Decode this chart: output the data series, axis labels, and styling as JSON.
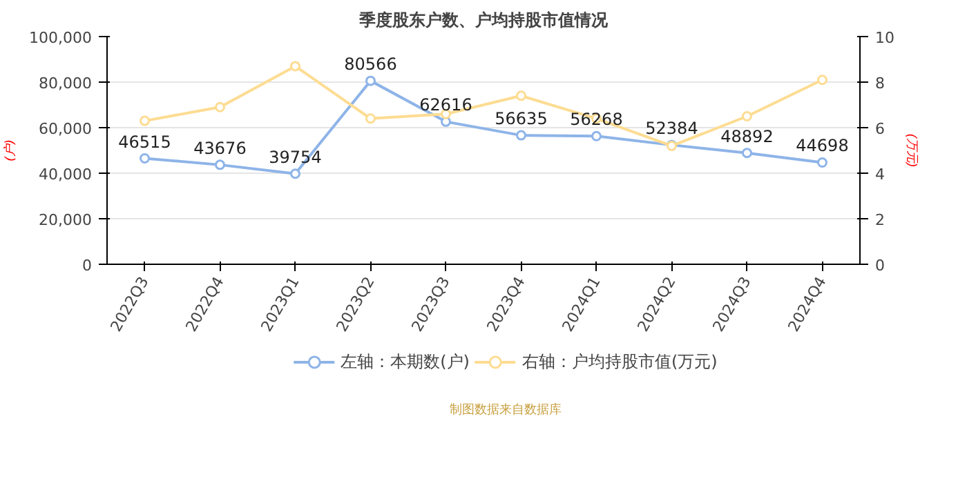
{
  "chart_data": {
    "type": "line",
    "title": "季度股东户数、户均持股市值情况",
    "ylabel": "(户)",
    "y2label": "(万元)",
    "categories": [
      "2022Q3",
      "2022Q4",
      "2023Q1",
      "2023Q2",
      "2023Q3",
      "2023Q4",
      "2024Q1",
      "2024Q2",
      "2024Q3",
      "2024Q4"
    ],
    "series": [
      {
        "name": "左轴：本期数(户)",
        "color": "#8eb4e8",
        "values": [
          46515,
          43676,
          39754,
          80566,
          62616,
          56635,
          56268,
          52384,
          48892,
          44698
        ],
        "value_labels": [
          "46515",
          "43676",
          "39754",
          "80566",
          "62616",
          "56635",
          "56268",
          "52384",
          "48892",
          "44698"
        ]
      },
      {
        "name": "右轴：户均持股市值(万元)",
        "color": "#fddc92",
        "axis": "y2",
        "values": [
          6.3,
          6.9,
          8.7,
          6.4,
          6.6,
          7.4,
          6.4,
          5.2,
          6.5,
          8.1
        ]
      }
    ],
    "ylim": [
      0,
      100000
    ],
    "yticks": [
      0,
      {
        "value": 20000,
        "label": "20,000"
      },
      {
        "value": 40000,
        "label": "40,000"
      },
      {
        "value": 60000,
        "label": "60,000"
      },
      {
        "value": 80000,
        "label": "80,000"
      },
      {
        "value": 100000,
        "label": "100,000"
      }
    ],
    "y2lim": [
      0,
      10
    ],
    "y2ticks": [
      0,
      2,
      4,
      6,
      8,
      10
    ],
    "grid": "y",
    "legend": "bottom",
    "marker": "circle",
    "line_style": "solid",
    "annotations": [
      "制图数据来自数据库"
    ]
  }
}
